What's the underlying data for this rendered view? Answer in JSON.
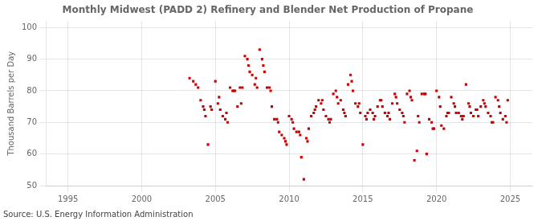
{
  "chart_data": {
    "type": "scatter",
    "title": "Monthly Midwest (PADD 2) Refinery and Blender Net Production of Propane",
    "ylabel": "Thousand Barrels per Day",
    "annotations": [
      "Source: U.S. Energy Information Administration"
    ],
    "color": "#cc0000",
    "marker": "square",
    "grid": true,
    "xlim": [
      1993.5,
      2026.5
    ],
    "ylim": [
      50,
      102
    ],
    "xticks": [
      1995,
      2000,
      2005,
      2010,
      2015,
      2020,
      2025
    ],
    "yticks": [
      50,
      60,
      70,
      80,
      90,
      100
    ],
    "x": [
      2003.25,
      2003.5,
      2003.67,
      2003.83,
      2004.0,
      2004.17,
      2004.25,
      2004.33,
      2004.5,
      2004.67,
      2004.75,
      2005.0,
      2005.17,
      2005.25,
      2005.33,
      2005.5,
      2005.67,
      2005.75,
      2005.83,
      2006.0,
      2006.17,
      2006.25,
      2006.33,
      2006.5,
      2006.67,
      2006.75,
      2006.83,
      2007.0,
      2007.17,
      2007.25,
      2007.33,
      2007.5,
      2007.67,
      2007.75,
      2007.83,
      2008.0,
      2008.17,
      2008.25,
      2008.33,
      2008.5,
      2008.67,
      2008.75,
      2008.83,
      2009.0,
      2009.17,
      2009.25,
      2009.33,
      2009.5,
      2009.67,
      2009.75,
      2009.83,
      2010.0,
      2010.17,
      2010.25,
      2010.33,
      2010.5,
      2010.67,
      2010.75,
      2010.83,
      2011.0,
      2011.17,
      2011.25,
      2011.33,
      2011.5,
      2011.67,
      2011.75,
      2011.83,
      2012.0,
      2012.17,
      2012.25,
      2012.33,
      2012.5,
      2012.67,
      2012.75,
      2012.83,
      2013.0,
      2013.17,
      2013.25,
      2013.33,
      2013.5,
      2013.67,
      2013.75,
      2013.83,
      2014.0,
      2014.17,
      2014.25,
      2014.33,
      2014.5,
      2014.67,
      2014.75,
      2014.83,
      2015.0,
      2015.17,
      2015.25,
      2015.33,
      2015.5,
      2015.67,
      2015.75,
      2015.83,
      2016.0,
      2016.17,
      2016.25,
      2016.33,
      2016.5,
      2016.67,
      2016.75,
      2016.83,
      2017.0,
      2017.17,
      2017.25,
      2017.33,
      2017.5,
      2017.67,
      2017.75,
      2017.83,
      2018.0,
      2018.17,
      2018.25,
      2018.33,
      2018.5,
      2018.67,
      2018.75,
      2018.83,
      2019.0,
      2019.17,
      2019.25,
      2019.33,
      2019.5,
      2019.67,
      2019.75,
      2019.83,
      2020.0,
      2020.17,
      2020.25,
      2020.33,
      2020.5,
      2020.67,
      2020.75,
      2020.83,
      2021.0,
      2021.17,
      2021.25,
      2021.33,
      2021.5,
      2021.67,
      2021.75,
      2021.83,
      2022.0,
      2022.17,
      2022.25,
      2022.33,
      2022.5,
      2022.67,
      2022.75,
      2022.83,
      2023.0,
      2023.17,
      2023.25,
      2023.33,
      2023.5,
      2023.67,
      2023.75,
      2023.83,
      2024.0,
      2024.17,
      2024.25,
      2024.33,
      2024.5,
      2024.67,
      2024.75,
      2024.83
    ],
    "values": [
      84,
      83,
      82,
      81,
      77,
      75,
      74,
      72,
      63,
      75,
      74,
      83,
      76,
      78,
      74,
      72,
      71,
      73,
      70,
      81,
      80,
      80,
      80,
      75,
      81,
      76,
      81,
      91,
      90,
      88,
      86,
      85,
      82,
      84,
      81,
      93,
      90,
      88,
      86,
      81,
      81,
      80,
      75,
      71,
      71,
      70,
      67,
      66,
      65,
      64,
      63,
      72,
      71,
      70,
      68,
      67,
      67,
      66,
      59,
      52,
      65,
      64,
      68,
      72,
      73,
      74,
      75,
      77,
      76,
      77,
      74,
      72,
      71,
      70,
      71,
      79,
      80,
      78,
      76,
      77,
      74,
      73,
      72,
      82,
      85,
      83,
      80,
      76,
      75,
      76,
      73,
      63,
      72,
      71,
      73,
      74,
      73,
      71,
      72,
      75,
      77,
      77,
      75,
      73,
      72,
      73,
      71,
      76,
      79,
      78,
      76,
      74,
      73,
      72,
      70,
      79,
      80,
      78,
      77,
      58,
      61,
      72,
      70,
      79,
      79,
      79,
      60,
      71,
      70,
      68,
      68,
      80,
      78,
      75,
      69,
      68,
      72,
      73,
      73,
      78,
      76,
      75,
      73,
      73,
      72,
      71,
      72,
      82,
      76,
      75,
      73,
      72,
      74,
      74,
      72,
      75,
      77,
      76,
      75,
      73,
      72,
      70,
      70,
      78,
      77,
      75,
      73,
      71,
      72,
      70,
      77
    ]
  }
}
